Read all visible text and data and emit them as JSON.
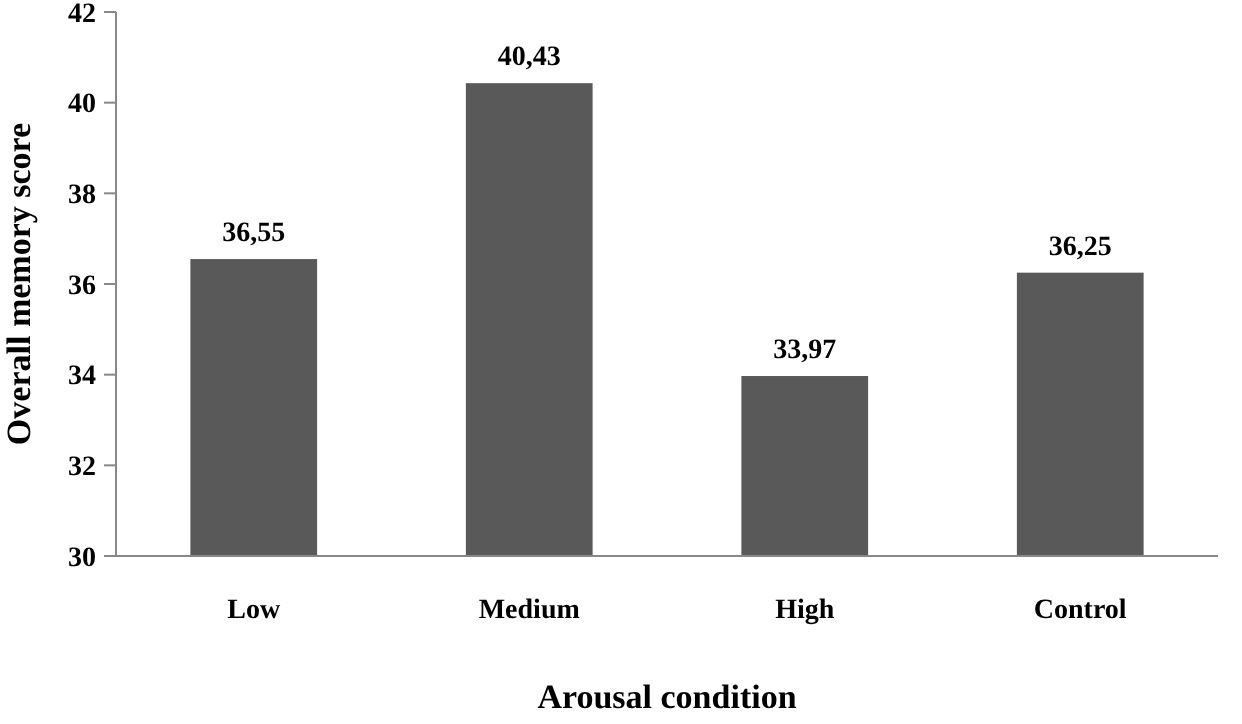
{
  "chart_data": {
    "type": "bar",
    "xlabel": "Arousal condition",
    "ylabel": "Overall memory score",
    "categories": [
      "Low",
      "Medium",
      "High",
      "Control"
    ],
    "values": [
      36.55,
      40.43,
      33.97,
      36.25
    ],
    "value_labels": [
      "36,55",
      "40,43",
      "33,97",
      "36,25"
    ],
    "color": "#595959",
    "ylim": [
      30,
      42
    ],
    "yticks": [
      30,
      32,
      34,
      36,
      38,
      40,
      42
    ],
    "grid": false
  }
}
